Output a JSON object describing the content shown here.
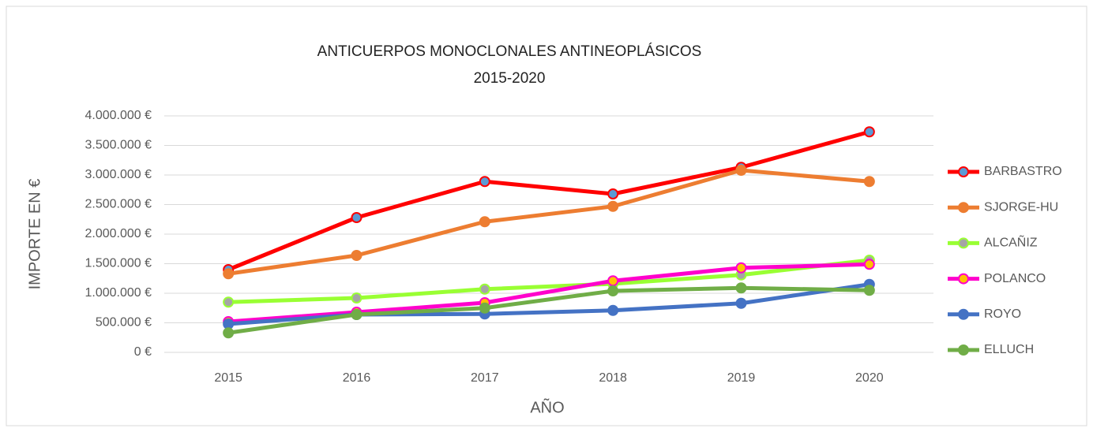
{
  "chart_data": {
    "type": "line",
    "title": "ANTICUERPOS MONOCLONALES ANTINEOPLÁSICOS",
    "subtitle": "2015-2020",
    "x_label": "AÑO",
    "y_label": "IMPORTE EN €",
    "categories": [
      "2015",
      "2016",
      "2017",
      "2018",
      "2019",
      "2020"
    ],
    "ylim": [
      0,
      4000000
    ],
    "yticks": [
      {
        "value": 0,
        "label": "0 €"
      },
      {
        "value": 500000,
        "label": "500.000 €"
      },
      {
        "value": 1000000,
        "label": "1.000.000 €"
      },
      {
        "value": 1500000,
        "label": "1.500.000 €"
      },
      {
        "value": 2000000,
        "label": "2.000.000 €"
      },
      {
        "value": 2500000,
        "label": "2.500.000 €"
      },
      {
        "value": 3000000,
        "label": "3.000.000 €"
      },
      {
        "value": 3500000,
        "label": "3.500.000 €"
      },
      {
        "value": 4000000,
        "label": "4.000.000 €"
      }
    ],
    "grid": true,
    "legend": "right",
    "series": [
      {
        "name": "BARBASTRO",
        "color": "#ff0000",
        "marker_color": "#5b9bd5",
        "values": [
          1400000,
          2280000,
          2890000,
          2680000,
          3130000,
          3730000
        ]
      },
      {
        "name": "SJORGE-HU",
        "color": "#ed7d31",
        "marker_color": "#ed7d31",
        "values": [
          1330000,
          1640000,
          2210000,
          2470000,
          3080000,
          2890000
        ]
      },
      {
        "name": "ALCAÑIZ",
        "color": "#99ff33",
        "marker_color": "#a5a5a5",
        "values": [
          850000,
          920000,
          1070000,
          1160000,
          1310000,
          1560000
        ]
      },
      {
        "name": "POLANCO",
        "color": "#ff00cc",
        "marker_color": "#ffc000",
        "values": [
          520000,
          680000,
          840000,
          1210000,
          1430000,
          1490000
        ]
      },
      {
        "name": "ROYO",
        "color": "#4472c4",
        "marker_color": "#4472c4",
        "values": [
          480000,
          640000,
          650000,
          710000,
          830000,
          1150000
        ]
      },
      {
        "name": "ELLUCH",
        "color": "#70ad47",
        "marker_color": "#70ad47",
        "values": [
          330000,
          640000,
          750000,
          1040000,
          1090000,
          1050000
        ]
      }
    ]
  }
}
